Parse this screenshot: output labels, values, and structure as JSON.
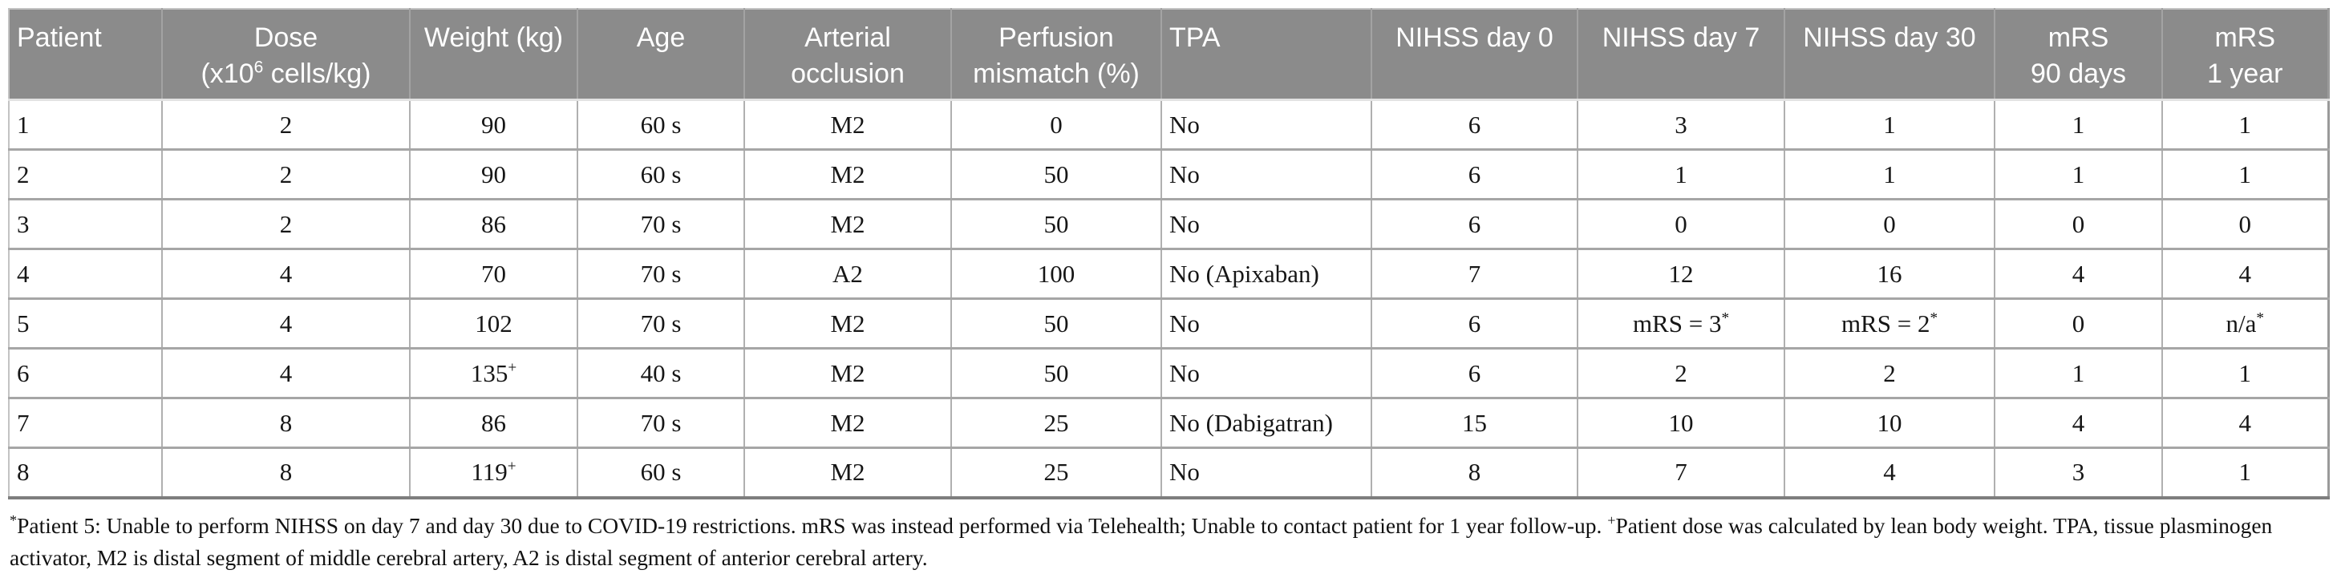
{
  "table": {
    "columns": [
      {
        "id": "patient",
        "align": "left",
        "lines": [
          [
            {
              "t": "Patient"
            }
          ]
        ]
      },
      {
        "id": "dose",
        "align": "center",
        "lines": [
          [
            {
              "t": "Dose"
            }
          ],
          [
            {
              "t": "(x10"
            },
            {
              "t": "6",
              "sup": true
            },
            {
              "t": " cells/kg)"
            }
          ]
        ]
      },
      {
        "id": "weight",
        "align": "center",
        "lines": [
          [
            {
              "t": "Weight (kg)"
            }
          ]
        ]
      },
      {
        "id": "age",
        "align": "center",
        "lines": [
          [
            {
              "t": "Age"
            }
          ]
        ]
      },
      {
        "id": "arterial-occlusion",
        "align": "center",
        "lines": [
          [
            {
              "t": "Arterial"
            }
          ],
          [
            {
              "t": "occlusion"
            }
          ]
        ]
      },
      {
        "id": "perfusion-mismatch",
        "align": "center",
        "lines": [
          [
            {
              "t": "Perfusion"
            }
          ],
          [
            {
              "t": "mismatch (%)"
            }
          ]
        ]
      },
      {
        "id": "tpa",
        "align": "left",
        "lines": [
          [
            {
              "t": "TPA"
            }
          ]
        ]
      },
      {
        "id": "nihss-day-0",
        "align": "center",
        "lines": [
          [
            {
              "t": "NIHSS day 0"
            }
          ]
        ]
      },
      {
        "id": "nihss-day-7",
        "align": "center",
        "lines": [
          [
            {
              "t": "NIHSS day 7"
            }
          ]
        ]
      },
      {
        "id": "nihss-day-30",
        "align": "center",
        "lines": [
          [
            {
              "t": "NIHSS day 30"
            }
          ]
        ]
      },
      {
        "id": "mrs-90-days",
        "align": "center",
        "lines": [
          [
            {
              "t": "mRS"
            }
          ],
          [
            {
              "t": "90 days"
            }
          ]
        ]
      },
      {
        "id": "mrs-1-year",
        "align": "center",
        "lines": [
          [
            {
              "t": "mRS"
            }
          ],
          [
            {
              "t": "1 year"
            }
          ]
        ]
      }
    ],
    "rows": [
      [
        [
          {
            "t": "1"
          }
        ],
        [
          {
            "t": "2"
          }
        ],
        [
          {
            "t": "90"
          }
        ],
        [
          {
            "t": "60 s"
          }
        ],
        [
          {
            "t": "M2"
          }
        ],
        [
          {
            "t": "0"
          }
        ],
        [
          {
            "t": "No"
          }
        ],
        [
          {
            "t": "6"
          }
        ],
        [
          {
            "t": "3"
          }
        ],
        [
          {
            "t": "1"
          }
        ],
        [
          {
            "t": "1"
          }
        ],
        [
          {
            "t": "1"
          }
        ]
      ],
      [
        [
          {
            "t": "2"
          }
        ],
        [
          {
            "t": "2"
          }
        ],
        [
          {
            "t": "90"
          }
        ],
        [
          {
            "t": "60 s"
          }
        ],
        [
          {
            "t": "M2"
          }
        ],
        [
          {
            "t": "50"
          }
        ],
        [
          {
            "t": "No"
          }
        ],
        [
          {
            "t": "6"
          }
        ],
        [
          {
            "t": "1"
          }
        ],
        [
          {
            "t": "1"
          }
        ],
        [
          {
            "t": "1"
          }
        ],
        [
          {
            "t": "1"
          }
        ]
      ],
      [
        [
          {
            "t": "3"
          }
        ],
        [
          {
            "t": "2"
          }
        ],
        [
          {
            "t": "86"
          }
        ],
        [
          {
            "t": "70 s"
          }
        ],
        [
          {
            "t": "M2"
          }
        ],
        [
          {
            "t": "50"
          }
        ],
        [
          {
            "t": "No"
          }
        ],
        [
          {
            "t": "6"
          }
        ],
        [
          {
            "t": "0"
          }
        ],
        [
          {
            "t": "0"
          }
        ],
        [
          {
            "t": "0"
          }
        ],
        [
          {
            "t": "0"
          }
        ]
      ],
      [
        [
          {
            "t": "4"
          }
        ],
        [
          {
            "t": "4"
          }
        ],
        [
          {
            "t": "70"
          }
        ],
        [
          {
            "t": "70 s"
          }
        ],
        [
          {
            "t": "A2"
          }
        ],
        [
          {
            "t": "100"
          }
        ],
        [
          {
            "t": "No (Apixaban)"
          }
        ],
        [
          {
            "t": "7"
          }
        ],
        [
          {
            "t": "12"
          }
        ],
        [
          {
            "t": "16"
          }
        ],
        [
          {
            "t": "4"
          }
        ],
        [
          {
            "t": "4"
          }
        ]
      ],
      [
        [
          {
            "t": "5"
          }
        ],
        [
          {
            "t": "4"
          }
        ],
        [
          {
            "t": "102"
          }
        ],
        [
          {
            "t": "70 s"
          }
        ],
        [
          {
            "t": "M2"
          }
        ],
        [
          {
            "t": "50"
          }
        ],
        [
          {
            "t": "No"
          }
        ],
        [
          {
            "t": "6"
          }
        ],
        [
          {
            "t": "mRS = 3"
          },
          {
            "t": "*",
            "sup": true
          }
        ],
        [
          {
            "t": "mRS = 2"
          },
          {
            "t": "*",
            "sup": true
          }
        ],
        [
          {
            "t": "0"
          }
        ],
        [
          {
            "t": "n/a"
          },
          {
            "t": "*",
            "sup": true
          }
        ]
      ],
      [
        [
          {
            "t": "6"
          }
        ],
        [
          {
            "t": "4"
          }
        ],
        [
          {
            "t": "135"
          },
          {
            "t": "+",
            "sup": true
          }
        ],
        [
          {
            "t": "40 s"
          }
        ],
        [
          {
            "t": "M2"
          }
        ],
        [
          {
            "t": "50"
          }
        ],
        [
          {
            "t": "No"
          }
        ],
        [
          {
            "t": "6"
          }
        ],
        [
          {
            "t": "2"
          }
        ],
        [
          {
            "t": "2"
          }
        ],
        [
          {
            "t": "1"
          }
        ],
        [
          {
            "t": "1"
          }
        ]
      ],
      [
        [
          {
            "t": "7"
          }
        ],
        [
          {
            "t": "8"
          }
        ],
        [
          {
            "t": "86"
          }
        ],
        [
          {
            "t": "70 s"
          }
        ],
        [
          {
            "t": "M2"
          }
        ],
        [
          {
            "t": "25"
          }
        ],
        [
          {
            "t": "No (Dabigatran)"
          }
        ],
        [
          {
            "t": "15"
          }
        ],
        [
          {
            "t": "10"
          }
        ],
        [
          {
            "t": "10"
          }
        ],
        [
          {
            "t": "4"
          }
        ],
        [
          {
            "t": "4"
          }
        ]
      ],
      [
        [
          {
            "t": "8"
          }
        ],
        [
          {
            "t": "8"
          }
        ],
        [
          {
            "t": "119"
          },
          {
            "t": "+",
            "sup": true
          }
        ],
        [
          {
            "t": "60 s"
          }
        ],
        [
          {
            "t": "M2"
          }
        ],
        [
          {
            "t": "25"
          }
        ],
        [
          {
            "t": "No"
          }
        ],
        [
          {
            "t": "8"
          }
        ],
        [
          {
            "t": "7"
          }
        ],
        [
          {
            "t": "4"
          }
        ],
        [
          {
            "t": "3"
          }
        ],
        [
          {
            "t": "1"
          }
        ]
      ]
    ]
  },
  "footnote": {
    "segments": [
      {
        "t": "*",
        "sup": true
      },
      {
        "t": "Patient 5: Unable to perform NIHSS on day 7 and day 30 due to COVID-19 restrictions. mRS was instead performed via Telehealth; Unable to contact patient for 1 year follow-up. "
      },
      {
        "t": "+",
        "sup": true
      },
      {
        "t": "Patient dose was calculated by lean body weight. TPA, tissue plasminogen activator, M2 is distal segment of middle cerebral artery, A2 is distal segment of anterior cerebral artery."
      }
    ]
  },
  "colors": {
    "header_bg": "#8b8b8b",
    "header_text": "#ffffff",
    "body_text": "#161616",
    "grid_line": "#a6a6a6"
  }
}
